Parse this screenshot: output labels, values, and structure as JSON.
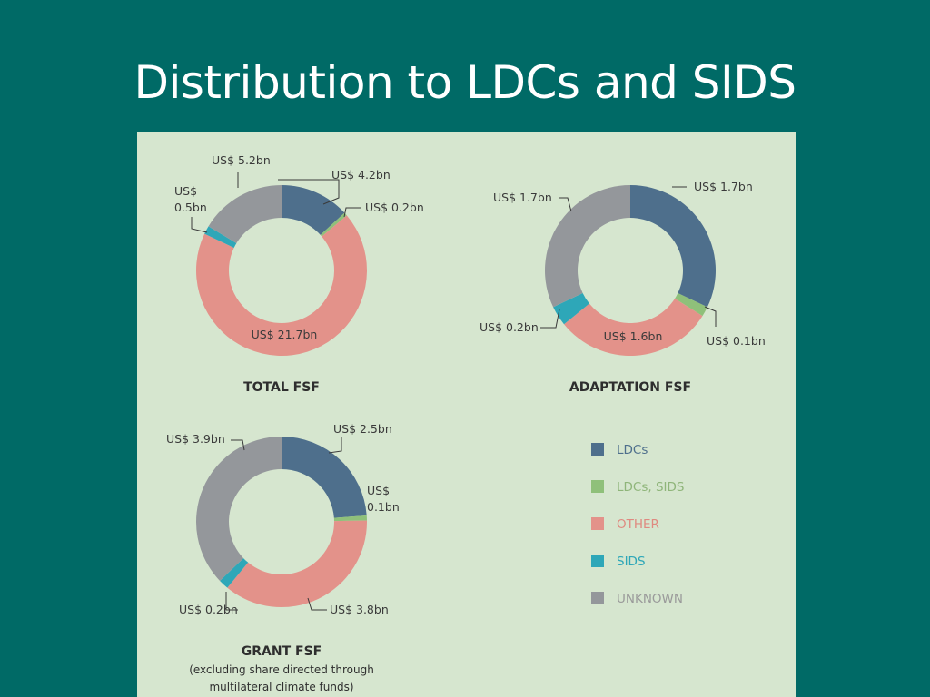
{
  "slide": {
    "title": "Distribution to LDCs and SIDS"
  },
  "legend": [
    {
      "key": "ldc",
      "label": "LDCs",
      "color": "#4e6f8c",
      "text_color": "#4e6f8c"
    },
    {
      "key": "ldcsids",
      "label": "LDCs, SIDS",
      "color": "#8fc07a",
      "text_color": "#8fb57a"
    },
    {
      "key": "other",
      "label": "OTHER",
      "color": "#e3928a",
      "text_color": "#df8a80"
    },
    {
      "key": "sids",
      "label": "SIDS",
      "color": "#2ea7b8",
      "text_color": "#2ea7b8"
    },
    {
      "key": "unknown",
      "label": "UNKNOWN",
      "color": "#94979b",
      "text_color": "#9a9a9a"
    }
  ],
  "chart_data": [
    {
      "type": "pie",
      "variant": "donut",
      "title": "TOTAL FSF",
      "subtitle": [],
      "slices": [
        {
          "category": "LDCs",
          "value": 4.2,
          "label": "US$ 4.2bn"
        },
        {
          "category": "LDCs, SIDS",
          "value": 0.2,
          "label": "US$ 0.2bn"
        },
        {
          "category": "OTHER",
          "value": 21.7,
          "label": "US$ 21.7bn"
        },
        {
          "category": "SIDS",
          "value": 0.5,
          "label_lines": [
            "US$",
            "0.5bn"
          ]
        },
        {
          "category": "UNKNOWN",
          "value": 5.2,
          "label": "US$ 5.2bn"
        }
      ]
    },
    {
      "type": "pie",
      "variant": "donut",
      "title": "ADAPTATION FSF",
      "subtitle": [],
      "slices": [
        {
          "category": "LDCs",
          "value": 1.7,
          "label": "US$ 1.7bn"
        },
        {
          "category": "LDCs, SIDS",
          "value": 0.1,
          "label": "US$ 0.1bn"
        },
        {
          "category": "OTHER",
          "value": 1.6,
          "label": "US$ 1.6bn"
        },
        {
          "category": "SIDS",
          "value": 0.2,
          "label": "US$ 0.2bn"
        },
        {
          "category": "UNKNOWN",
          "value": 1.7,
          "label": "US$ 1.7bn"
        }
      ]
    },
    {
      "type": "pie",
      "variant": "donut",
      "title": "GRANT FSF",
      "subtitle": [
        "(excluding share directed through",
        "multilateral climate funds)"
      ],
      "slices": [
        {
          "category": "LDCs",
          "value": 2.5,
          "label": "US$ 2.5bn"
        },
        {
          "category": "LDCs, SIDS",
          "value": 0.1,
          "label_lines": [
            "US$",
            "0.1bn"
          ]
        },
        {
          "category": "OTHER",
          "value": 3.8,
          "label": "US$ 3.8bn"
        },
        {
          "category": "SIDS",
          "value": 0.2,
          "label": "US$ 0.2bn"
        },
        {
          "category": "UNKNOWN",
          "value": 3.9,
          "label": "US$ 3.9bn"
        }
      ]
    }
  ]
}
